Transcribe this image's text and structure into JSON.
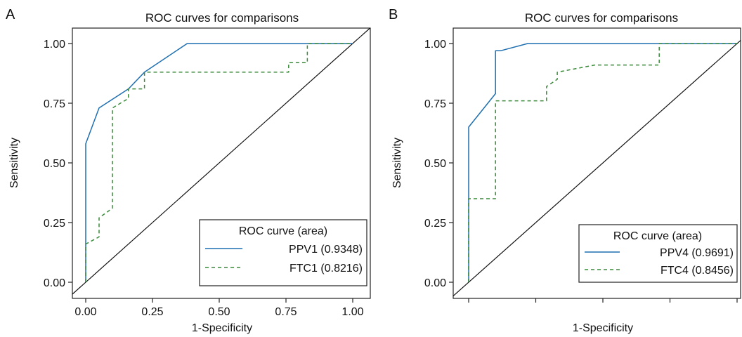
{
  "chart_data": [
    {
      "panel": "A",
      "type": "line",
      "title": "ROC curves for comparisons",
      "xlabel": "1-Specificity",
      "ylabel": "Sensitivity",
      "xlim": [
        0,
        1
      ],
      "ylim": [
        0,
        1
      ],
      "x_tick_labels": [
        "0.00",
        "0.25",
        "0.50",
        "0.75",
        "1.00"
      ],
      "y_tick_labels": [
        "0.00",
        "0.25",
        "0.50",
        "0.75",
        "1.00"
      ],
      "grid": false,
      "legend": {
        "title": "ROC curve (area)",
        "placement": "bottom-right"
      },
      "series": [
        {
          "name": "PPV1 (0.9348)",
          "color": "#1f6fb0",
          "style": "solid",
          "x": [
            0,
            0,
            0.05,
            0.16,
            0.22,
            0.38,
            1.0
          ],
          "y": [
            0,
            0.58,
            0.73,
            0.81,
            0.88,
            1.0,
            1.0
          ]
        },
        {
          "name": "FTC1 (0.8216)",
          "color": "#3a8a3a",
          "style": "dashed",
          "x": [
            0,
            0,
            0.05,
            0.05,
            0.05,
            0.1,
            0.1,
            0.1,
            0.16,
            0.16,
            0.22,
            0.22,
            0.76,
            0.76,
            0.83,
            0.83,
            1.0
          ],
          "y": [
            0,
            0.16,
            0.19,
            0.23,
            0.27,
            0.31,
            0.35,
            0.73,
            0.77,
            0.81,
            0.81,
            0.88,
            0.88,
            0.92,
            0.92,
            1.0,
            1.0
          ]
        }
      ],
      "reference_line": {
        "x": [
          0,
          1
        ],
        "y": [
          0,
          1
        ]
      }
    },
    {
      "panel": "B",
      "type": "line",
      "title": "ROC curves for comparisons",
      "xlabel": "1-Specificity",
      "ylabel": "Sensitivity",
      "xlim": [
        0,
        1
      ],
      "ylim": [
        0,
        1
      ],
      "x_tick_labels": [],
      "y_tick_labels": [
        "0.00",
        "0.25",
        "0.50",
        "0.75",
        "1.00"
      ],
      "grid": false,
      "legend": {
        "title": "ROC curve (area)",
        "placement": "bottom-right"
      },
      "series": [
        {
          "name": "PPV4 (0.9691)",
          "color": "#1f6fb0",
          "style": "solid",
          "x": [
            0,
            0,
            0.1,
            0.1,
            0.12,
            0.22,
            1.0
          ],
          "y": [
            0,
            0.65,
            0.79,
            0.97,
            0.97,
            1.0,
            1.0
          ]
        },
        {
          "name": "FTC4 (0.8456)",
          "color": "#3a8a3a",
          "style": "dashed",
          "x": [
            0,
            0,
            0.1,
            0.1,
            0.29,
            0.29,
            0.33,
            0.33,
            0.47,
            0.47,
            0.71,
            0.71,
            1.0
          ],
          "y": [
            0,
            0.35,
            0.35,
            0.76,
            0.76,
            0.82,
            0.85,
            0.88,
            0.91,
            0.91,
            0.91,
            1.0,
            1.0
          ]
        }
      ],
      "reference_line": {
        "x": [
          0,
          1
        ],
        "y": [
          0,
          1
        ]
      }
    }
  ]
}
